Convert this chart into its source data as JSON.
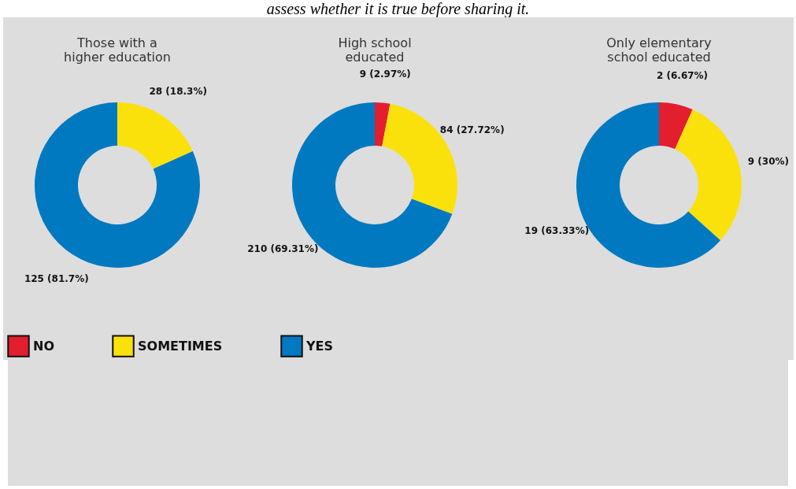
{
  "chart_data": {
    "type": "donut",
    "annotations": [
      "assess whether it is true before sharing it."
    ],
    "categories": [
      "NO",
      "SOMETIMES",
      "YES"
    ],
    "colors": [
      "#e31e2f",
      "#fbe10c",
      "#0079c1"
    ],
    "legend": "bottom",
    "series": [
      {
        "name": "Those with a higher education",
        "values": [
          null,
          28,
          125
        ],
        "value_labels": [
          null,
          "28 (18.3%)",
          "125 (81.7%)"
        ]
      },
      {
        "name": "High school educated",
        "values": [
          9,
          84,
          210
        ],
        "value_labels": [
          "9 (2.97%)",
          "84 (27.72%)",
          "210 (69.31%)"
        ]
      },
      {
        "name": "Only elementary school educated",
        "values": [
          2,
          9,
          19
        ],
        "value_labels": [
          "2 (6.67%)",
          "9 (30%)",
          "19 (63.33%)"
        ]
      }
    ]
  }
}
